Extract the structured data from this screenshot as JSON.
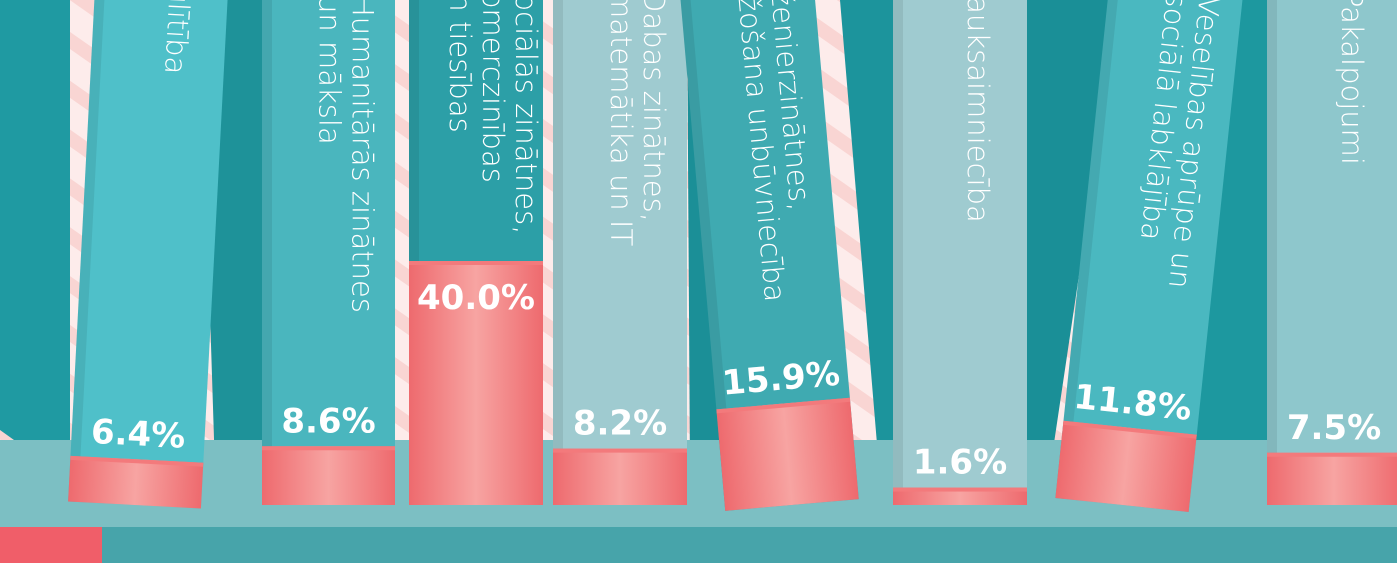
{
  "chart_data": {
    "type": "book-shelf",
    "categories": [
      [
        "Izglītība"
      ],
      [
        "Humanitārās zinātnes",
        "un māksla"
      ],
      [
        "Sociālās zinātnes,",
        "komerczinības",
        "un tiesības"
      ],
      [
        "Dabas zinātnes,",
        "matemātika un IT"
      ],
      [
        "Inženierzinātnes,",
        "ražošana unbūvniecība"
      ],
      [
        "Lauksaimniecība"
      ],
      [
        "Veselības aprūpe un",
        "sociālā labklājība"
      ],
      [
        "Pakalpojumi"
      ]
    ],
    "values": [
      6.4,
      8.6,
      40.0,
      8.2,
      15.9,
      1.6,
      11.8,
      7.5
    ],
    "value_labels": [
      "6.4%",
      "8.6%",
      "40.0%",
      "8.2%",
      "15.9%",
      "1.6%",
      "11.8%",
      "7.5%"
    ],
    "color": "#f37a7c"
  }
}
